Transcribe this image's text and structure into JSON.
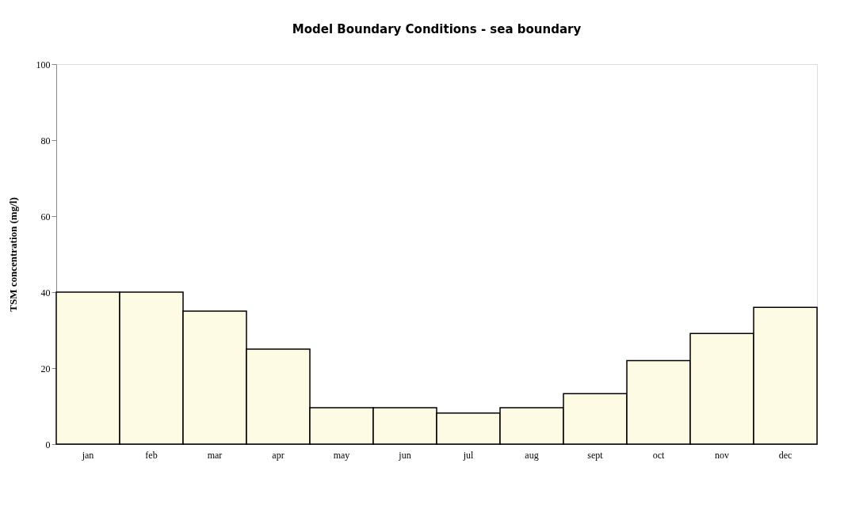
{
  "chart_data": {
    "type": "bar",
    "title": "Model Boundary Conditions - sea boundary",
    "ylabel": "TSM concentration (mg/l)",
    "categories": [
      "jan",
      "feb",
      "mar",
      "apr",
      "may",
      "jun",
      "jul",
      "aug",
      "sept",
      "oct",
      "nov",
      "dec"
    ],
    "values": [
      40,
      40,
      35,
      25,
      9.6,
      9.6,
      8.2,
      9.6,
      13.3,
      22,
      29.1,
      36
    ],
    "color": "#fdfbe3",
    "ylim": [
      0,
      100
    ],
    "yticks": [
      0,
      20,
      40,
      60,
      80,
      100
    ],
    "grid": false
  }
}
